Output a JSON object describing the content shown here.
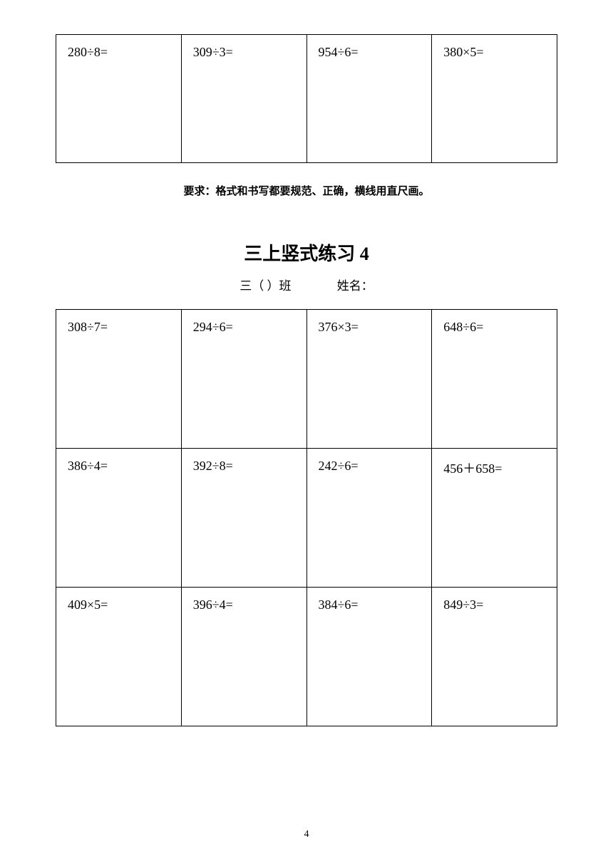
{
  "top_table": {
    "cells": [
      "280÷8=",
      "309÷3=",
      "954÷6=",
      "380×5="
    ]
  },
  "instruction_text": "要求：格式和书写都要规范、正确，横线用直尺画。",
  "section_title": "三上竖式练习 4",
  "class_label": "三（  ）班",
  "name_label": "姓名：",
  "main_table": {
    "rows": [
      [
        "308÷7=",
        "294÷6=",
        "376×3=",
        "648÷6="
      ],
      [
        "386÷4=",
        "392÷8=",
        "242÷6=",
        "456＋658="
      ],
      [
        "409×5=",
        "396÷4=",
        "384÷6=",
        "849÷3="
      ]
    ]
  },
  "page_number": "4"
}
